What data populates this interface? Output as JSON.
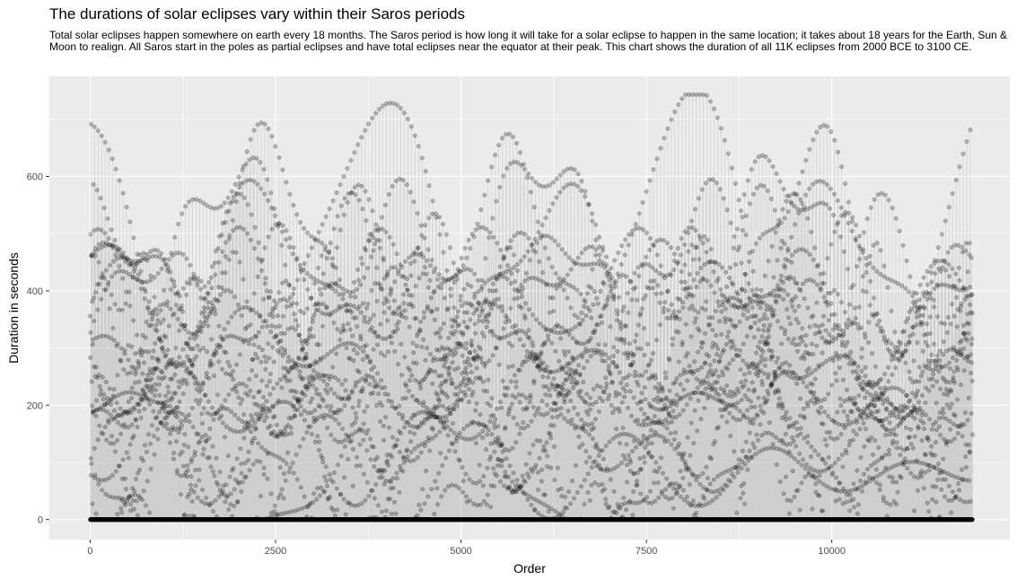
{
  "chart_data": {
    "type": "scatter",
    "title": "The durations of solar eclipses vary within their Saros periods",
    "subtitle": "Total solar eclipses happen somewhere on earth every 18 months. The Saros period is how long it will take for a solar eclipse to happen in the same location; it takes about 18 years for the Earth, Sun & Moon to realign. All Saros start in the poles as partial eclipses and have total eclipses near the equator at their peak. This chart shows the duration of all 11K eclipses from 2000 BCE to 3100 CE.",
    "xlabel": "Order",
    "ylabel": "Duration in seconds",
    "xlim": [
      -550,
      12400
    ],
    "ylim": [
      -35,
      775
    ],
    "x_ticks": [
      0,
      2500,
      5000,
      7500,
      10000
    ],
    "x_tick_labels": [
      "0",
      "2500",
      "5000",
      "7500",
      "10000"
    ],
    "y_ticks": [
      0,
      200,
      400,
      600
    ],
    "y_tick_labels": [
      "0",
      "200",
      "400",
      "600"
    ],
    "grid": true,
    "n_points": 11898,
    "x_range": [
      0,
      11898
    ],
    "duration_range": [
      0,
      743
    ],
    "line_connected": true,
    "point_color": "#000000",
    "point_alpha": 0.25,
    "panel_background": "#ebebeb",
    "grid_color": "#ffffff"
  }
}
